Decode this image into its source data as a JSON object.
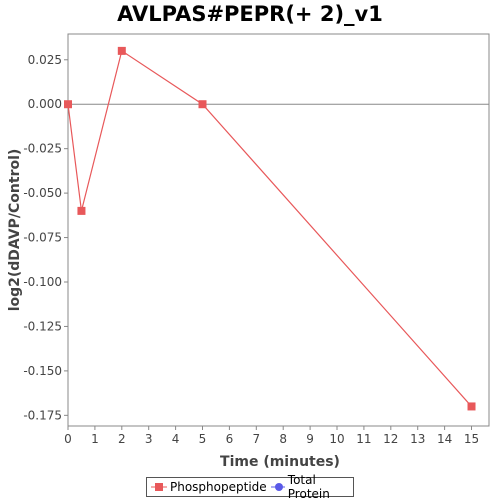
{
  "chart_data": {
    "type": "line",
    "title": "AVLPAS#PEPR(+ 2)_v1",
    "xlabel": "Time (minutes)",
    "ylabel": "log2(dDAVP/Control)",
    "xlim": [
      0,
      15.65
    ],
    "ylim": [
      -0.181,
      0.0395
    ],
    "x_ticks": [
      0,
      1,
      2,
      3,
      4,
      5,
      6,
      7,
      8,
      9,
      10,
      11,
      12,
      13,
      14,
      15
    ],
    "y_ticks": [
      0.025,
      0.0,
      -0.025,
      -0.05,
      -0.075,
      -0.1,
      -0.125,
      -0.15,
      -0.175
    ],
    "y_tick_labels": [
      "0.025",
      "0.000",
      "-0.025",
      "-0.050",
      "-0.075",
      "-0.100",
      "-0.125",
      "-0.150",
      "-0.175"
    ],
    "grid": false,
    "zero_line": true,
    "legend_position": "bottom",
    "series": [
      {
        "name": "Phosphopeptide",
        "color": "#e8585a",
        "marker": "square",
        "x": [
          0,
          0.5,
          2,
          5,
          15
        ],
        "y": [
          0.0,
          -0.06,
          0.03,
          0.0,
          -0.17
        ]
      },
      {
        "name": "Total Protein",
        "color": "#5a5ae8",
        "marker": "circle",
        "x": [],
        "y": []
      }
    ]
  }
}
